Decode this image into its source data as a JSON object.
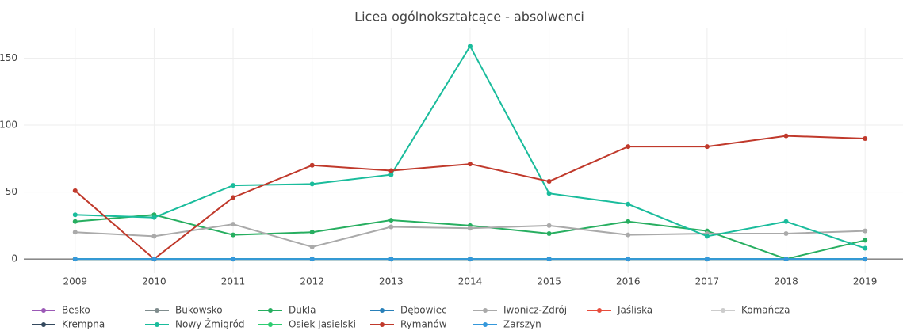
{
  "chart_data": {
    "type": "line",
    "title": "Licea ogólnokształcące - absolwenci",
    "x": [
      2009,
      2010,
      2011,
      2012,
      2013,
      2014,
      2015,
      2016,
      2017,
      2018,
      2019
    ],
    "xlim": [
      2008.35,
      2019.48
    ],
    "xticks": [
      2009,
      2010,
      2011,
      2012,
      2013,
      2014,
      2015,
      2016,
      2017,
      2018,
      2019
    ],
    "ylim": [
      -10.6,
      172.8
    ],
    "yticks": [
      0,
      50,
      100,
      150
    ],
    "grid": true,
    "series": [
      {
        "name": "Besko",
        "color": "#9b59b6",
        "values": [
          0,
          0,
          0,
          0,
          0,
          0,
          0,
          0,
          0,
          0,
          0
        ]
      },
      {
        "name": "Bukowsko",
        "color": "#7f8c8d",
        "values": [
          0,
          0,
          0,
          0,
          0,
          0,
          0,
          0,
          0,
          0,
          0
        ]
      },
      {
        "name": "Dukla",
        "color": "#27ae60",
        "values": [
          28,
          33,
          18,
          20,
          29,
          25,
          19,
          28,
          21,
          0,
          14
        ]
      },
      {
        "name": "Dębowiec",
        "color": "#2980b9",
        "values": [
          0,
          0,
          0,
          0,
          0,
          0,
          0,
          0,
          0,
          0,
          0
        ]
      },
      {
        "name": "Iwonicz-Zdrój",
        "color": "#aaaaaa",
        "values": [
          20,
          17,
          26,
          9,
          24,
          23,
          25,
          18,
          19,
          19,
          21
        ]
      },
      {
        "name": "Jaśliska",
        "color": "#e74c3c",
        "values": [
          0,
          0,
          0,
          0,
          0,
          0,
          0,
          0,
          0,
          0,
          0
        ]
      },
      {
        "name": "Komańcza",
        "color": "#cccccc",
        "values": [
          0,
          0,
          0,
          0,
          0,
          0,
          0,
          0,
          0,
          0,
          0
        ]
      },
      {
        "name": "Krempna",
        "color": "#34495e",
        "values": [
          0,
          0,
          0,
          0,
          0,
          0,
          0,
          0,
          0,
          0,
          0
        ]
      },
      {
        "name": "Nowy Żmigród",
        "color": "#1abc9c",
        "values": [
          33,
          31,
          55,
          56,
          63,
          159,
          49,
          41,
          17,
          28,
          8
        ]
      },
      {
        "name": "Osiek Jasielski",
        "color": "#2ecc71",
        "values": [
          0,
          0,
          0,
          0,
          0,
          0,
          0,
          0,
          0,
          0,
          0
        ]
      },
      {
        "name": "Rymanów",
        "color": "#c0392b",
        "values": [
          51,
          0,
          46,
          70,
          66,
          71,
          58,
          84,
          84,
          92,
          90
        ]
      },
      {
        "name": "Zarszyn",
        "color": "#3498db",
        "values": [
          0,
          0,
          0,
          0,
          0,
          0,
          0,
          0,
          0,
          0,
          0
        ]
      }
    ]
  }
}
